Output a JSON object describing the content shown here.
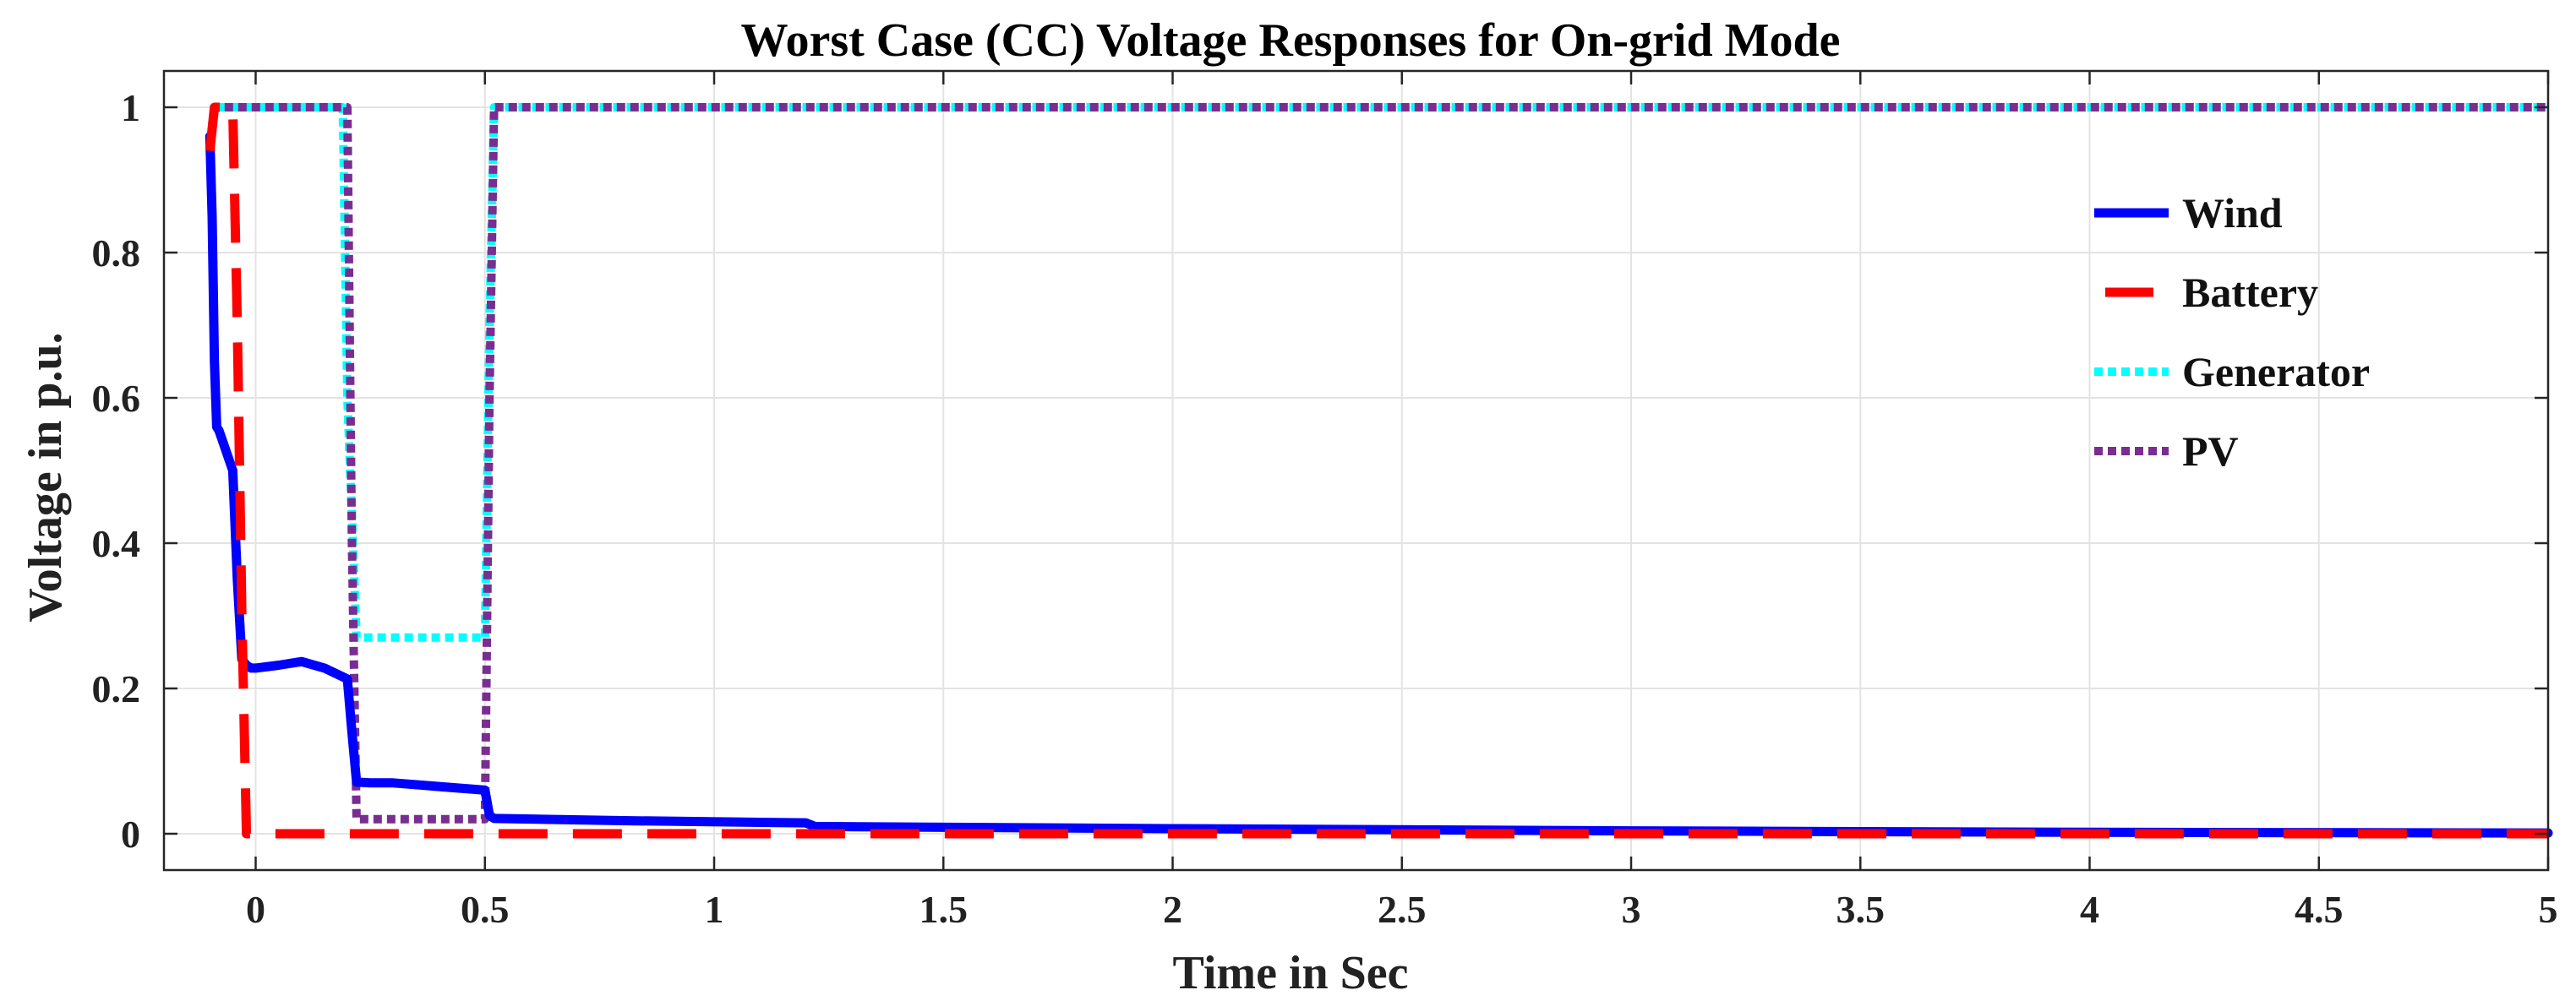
{
  "chart_data": {
    "type": "line",
    "title": "Worst Case (CC) Voltage Responses for On-grid Mode",
    "xlabel": "Time in Sec",
    "ylabel": "Voltage in p.u.",
    "xlim": [
      -0.2,
      5
    ],
    "ylim": [
      -0.05,
      1.05
    ],
    "xticks": [
      0,
      0.5,
      1,
      1.5,
      2,
      2.5,
      3,
      3.5,
      4,
      4.5,
      5
    ],
    "xtick_labels": [
      "0",
      "0.5",
      "1",
      "1.5",
      "2",
      "2.5",
      "3",
      "3.5",
      "4",
      "4.5",
      "5"
    ],
    "yticks": [
      0,
      0.2,
      0.4,
      0.6,
      0.8,
      1
    ],
    "ytick_labels": [
      "0",
      "0.2",
      "0.4",
      "0.6",
      "0.8",
      "1"
    ],
    "grid": true,
    "legend_position": "top-right",
    "series": [
      {
        "name": "Wind",
        "color": "#0000ff",
        "style": "solid",
        "x": [
          -0.1,
          -0.095,
          -0.09,
          -0.085,
          -0.08,
          -0.05,
          -0.04,
          -0.03,
          -0.02,
          -0.01,
          0,
          0.05,
          0.1,
          0.15,
          0.2,
          0.21,
          0.22,
          0.25,
          0.3,
          0.4,
          0.5,
          0.51,
          0.52,
          0.8,
          1.2,
          1.22,
          2,
          3,
          4,
          5
        ],
        "y": [
          0.96,
          0.85,
          0.65,
          0.56,
          0.555,
          0.5,
          0.35,
          0.24,
          0.232,
          0.228,
          0.228,
          0.232,
          0.237,
          0.228,
          0.213,
          0.14,
          0.071,
          0.07,
          0.07,
          0.065,
          0.06,
          0.025,
          0.021,
          0.018,
          0.015,
          0.01,
          0.007,
          0.004,
          0.002,
          0.001
        ]
      },
      {
        "name": "Battery",
        "color": "#ff0000",
        "style": "dashed",
        "x": [
          -0.1,
          -0.09,
          -0.08,
          -0.05,
          -0.04,
          -0.03,
          -0.02,
          0,
          0.05,
          5
        ],
        "y": [
          0.94,
          1.0,
          1.0,
          1.0,
          0.7,
          0.3,
          0.0,
          0.0,
          0.0,
          0.0
        ]
      },
      {
        "name": "Generator",
        "color": "#00ffff",
        "style": "dotted",
        "x": [
          -0.1,
          -0.09,
          -0.08,
          0.19,
          0.2,
          0.22,
          0.5,
          0.51,
          0.52,
          5
        ],
        "y": [
          0.95,
          1.0,
          1.0,
          1.0,
          0.6,
          0.27,
          0.27,
          0.7,
          1.0,
          1.0
        ]
      },
      {
        "name": "PV",
        "color": "#7a2d90",
        "style": "dotted",
        "x": [
          -0.1,
          -0.09,
          -0.08,
          0.2,
          0.21,
          0.22,
          0.5,
          0.51,
          0.52,
          5
        ],
        "y": [
          0.94,
          1.0,
          1.0,
          1.0,
          0.4,
          0.02,
          0.02,
          0.6,
          1.0,
          1.0
        ]
      }
    ]
  }
}
